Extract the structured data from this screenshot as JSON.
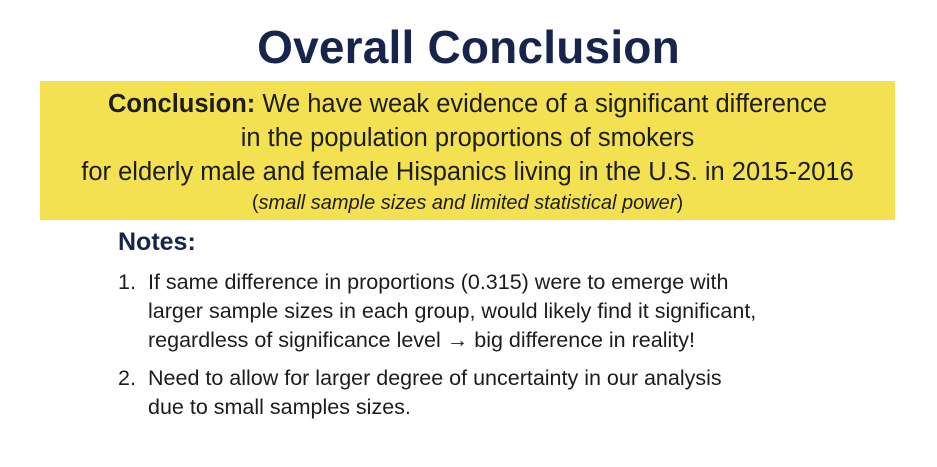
{
  "slide": {
    "title": "Overall Conclusion"
  },
  "conclusion": {
    "label": "Conclusion:",
    "line1": "We have weak evidence of a significant difference",
    "line2": "in the population proportions of smokers",
    "line3": "for elderly male and female Hispanics living in the U.S. in 2015-2016",
    "caveat_open": "(",
    "caveat_text": "small sample sizes and limited statistical power",
    "caveat_close": ")",
    "highlight_color": "#f4e151"
  },
  "notes": {
    "heading": "Notes:",
    "items": [
      {
        "number": "1.",
        "lines": [
          "If same difference in proportions (0.315) were to emerge with",
          "larger sample sizes in each group, would likely find it significant,",
          "regardless of significance level → big difference in reality!"
        ]
      },
      {
        "number": "2.",
        "lines": [
          "Need to allow for larger degree of uncertainty in our analysis",
          "due to small samples sizes."
        ]
      }
    ]
  }
}
